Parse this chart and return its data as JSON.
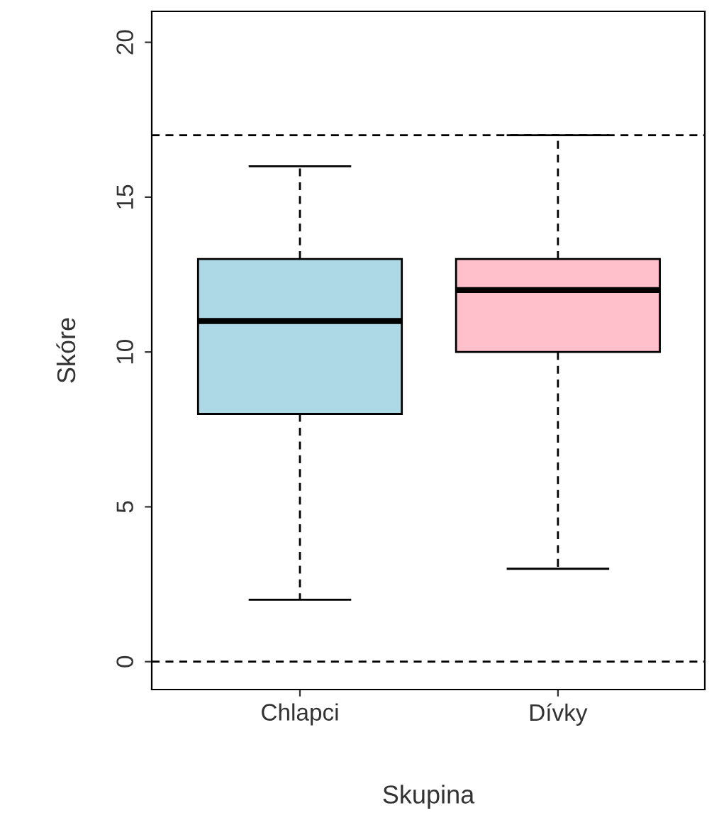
{
  "chart_data": {
    "type": "box",
    "xlabel": "Skupina",
    "ylabel": "Skóre",
    "categories": [
      "Chlapci",
      "Dívky"
    ],
    "colors": [
      "#add8e6",
      "#ffc0cb"
    ],
    "boxes": [
      {
        "low": 2,
        "q1": 8,
        "median": 11,
        "q3": 13,
        "high": 16
      },
      {
        "low": 3,
        "q1": 10,
        "median": 12,
        "q3": 13,
        "high": 17
      }
    ],
    "ylim": [
      -0.9,
      21
    ],
    "yticks": [
      0,
      5,
      10,
      15,
      20
    ],
    "ref_lines": [
      {
        "axis": "y",
        "value": 0,
        "line_style": "dashed"
      },
      {
        "axis": "y",
        "value": 17,
        "line_style": "dashed"
      }
    ],
    "grid": false,
    "legend": false
  }
}
